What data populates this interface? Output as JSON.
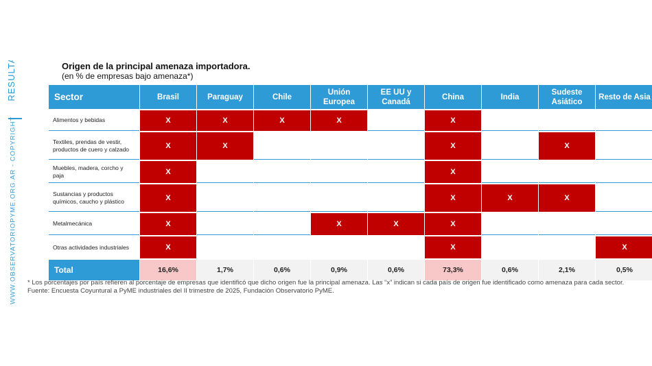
{
  "side": {
    "top_text": "RESULTADOS ENCUESTA",
    "copyright": "WWW.OBSERVATORIOPYME.ORG.AR - COPYRIGHT"
  },
  "title": "Origen de la principal amenaza importadora.",
  "subtitle": "(en % de empresas bajo amenaza*)",
  "table": {
    "headers": [
      "Sector",
      "Brasil",
      "Paraguay",
      "Chile",
      "Unión\nEuropea",
      "EE UU y\nCanadá",
      "China",
      "India",
      "Sudeste\nAsiático",
      "Resto de Asia"
    ],
    "rows": [
      {
        "label": "Alimentos y bebidas",
        "cells": [
          "X",
          "X",
          "X",
          "X",
          "",
          "X",
          "",
          "",
          ""
        ]
      },
      {
        "label": "Textiles, prendas de vestir,\nproductos de cuero y calzado",
        "cells": [
          "X",
          "X",
          "",
          "",
          "",
          "X",
          "",
          "X",
          ""
        ]
      },
      {
        "label": "Muebles, madera, corcho y\npaja",
        "cells": [
          "X",
          "",
          "",
          "",
          "",
          "X",
          "",
          "",
          ""
        ]
      },
      {
        "label": "Sustancias y productos\nquímicos, caucho y plástico",
        "cells": [
          "X",
          "",
          "",
          "",
          "",
          "X",
          "X",
          "X",
          ""
        ]
      },
      {
        "label": "Metalmecánica",
        "cells": [
          "X",
          "",
          "",
          "X",
          "X",
          "X",
          "",
          "",
          ""
        ]
      },
      {
        "label": "Otras actividades industriales",
        "cells": [
          "X",
          "",
          "",
          "",
          "",
          "X",
          "",
          "",
          "X"
        ]
      }
    ],
    "total_label": "Total",
    "totals": [
      "16,6%",
      "1,7%",
      "0,6%",
      "0,9%",
      "0,6%",
      "73,3%",
      "0,6%",
      "2,1%",
      "0,5%"
    ],
    "highlight_totals": [
      0,
      5
    ],
    "colors": {
      "header": "#2e9bd6",
      "mark": "#c00000",
      "highlight": "#f8c7c7",
      "total": "#f2f2f2"
    }
  },
  "footnote": {
    "line1": "* Los porcentajes por país refieren al porcentaje de empresas que identificó que dicho origen fue la principal amenaza. Las “x” indican si cada país de origen fue identificado como amenaza para cada sector.",
    "line2": "Fuente: Encuesta Coyuntural a PyME industriales  del II trimestre de 2025, Fundación Observatorio PyME."
  }
}
